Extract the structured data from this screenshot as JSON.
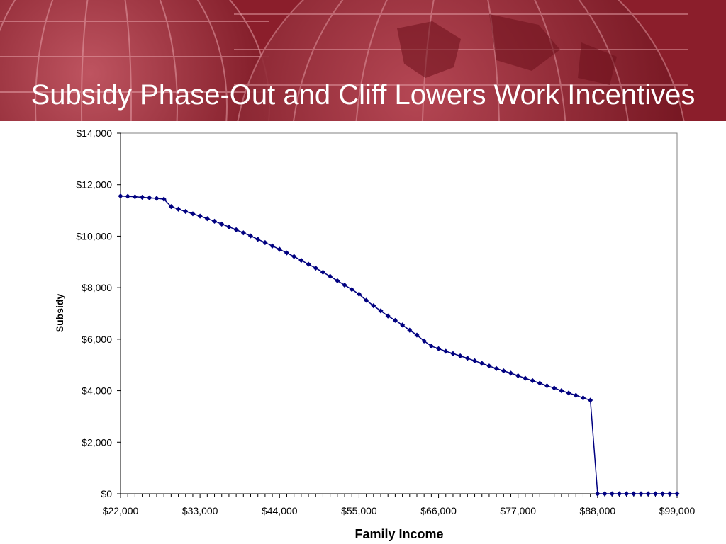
{
  "title": "Subsidy Phase-Out and Cliff Lowers Work Incentives",
  "colors": {
    "banner": "#8b1e2b",
    "banner_dark": "#5e0f19",
    "banner_light": "#b24452",
    "series": "#000080",
    "title_text": "#ffffff"
  },
  "chart_data": {
    "type": "line",
    "xlabel": "Family Income",
    "ylabel": "Subsidy",
    "xlim": [
      22000,
      99000
    ],
    "ylim": [
      0,
      14000
    ],
    "x_tick_labels": [
      "$22,000",
      "$33,000",
      "$44,000",
      "$55,000",
      "$66,000",
      "$77,000",
      "$88,000",
      "$99,000"
    ],
    "y_tick_labels": [
      "$0",
      "$2,000",
      "$4,000",
      "$6,000",
      "$8,000",
      "$10,000",
      "$12,000",
      "$14,000"
    ],
    "grid": false,
    "marker": "diamond",
    "series": [
      {
        "x": [
          22000,
          23000,
          24000,
          25000,
          26000,
          27000,
          28000,
          29000,
          30000,
          31000,
          32000,
          33000,
          34000,
          35000,
          36000,
          37000,
          38000,
          39000,
          40000,
          41000,
          42000,
          43000,
          44000,
          45000,
          46000,
          47000,
          48000,
          49000,
          50000,
          51000,
          52000,
          53000,
          54000,
          55000,
          56000,
          57000,
          58000,
          59000,
          60000,
          61000,
          62000,
          63000,
          64000,
          65000,
          66000,
          67000,
          68000,
          69000,
          70000,
          71000,
          72000,
          73000,
          74000,
          75000,
          76000,
          77000,
          78000,
          79000,
          80000,
          81000,
          82000,
          83000,
          84000,
          85000,
          86000,
          87000,
          88000,
          89000,
          90000,
          91000,
          92000,
          93000,
          94000,
          95000,
          96000,
          97000,
          98000,
          99000
        ],
        "y": [
          11560,
          11550,
          11530,
          11510,
          11490,
          11470,
          11440,
          11150,
          11050,
          10960,
          10870,
          10780,
          10680,
          10580,
          10470,
          10360,
          10250,
          10130,
          10010,
          9880,
          9750,
          9620,
          9490,
          9350,
          9210,
          9060,
          8910,
          8760,
          8600,
          8440,
          8270,
          8100,
          7930,
          7750,
          7510,
          7300,
          7100,
          6900,
          6730,
          6550,
          6350,
          6160,
          5930,
          5730,
          5630,
          5530,
          5440,
          5350,
          5260,
          5160,
          5060,
          4960,
          4860,
          4770,
          4680,
          4580,
          4480,
          4390,
          4290,
          4190,
          4100,
          4000,
          3910,
          3820,
          3720,
          3630,
          0,
          0,
          0,
          0,
          0,
          0,
          0,
          0,
          0,
          0,
          0,
          0
        ]
      }
    ]
  }
}
